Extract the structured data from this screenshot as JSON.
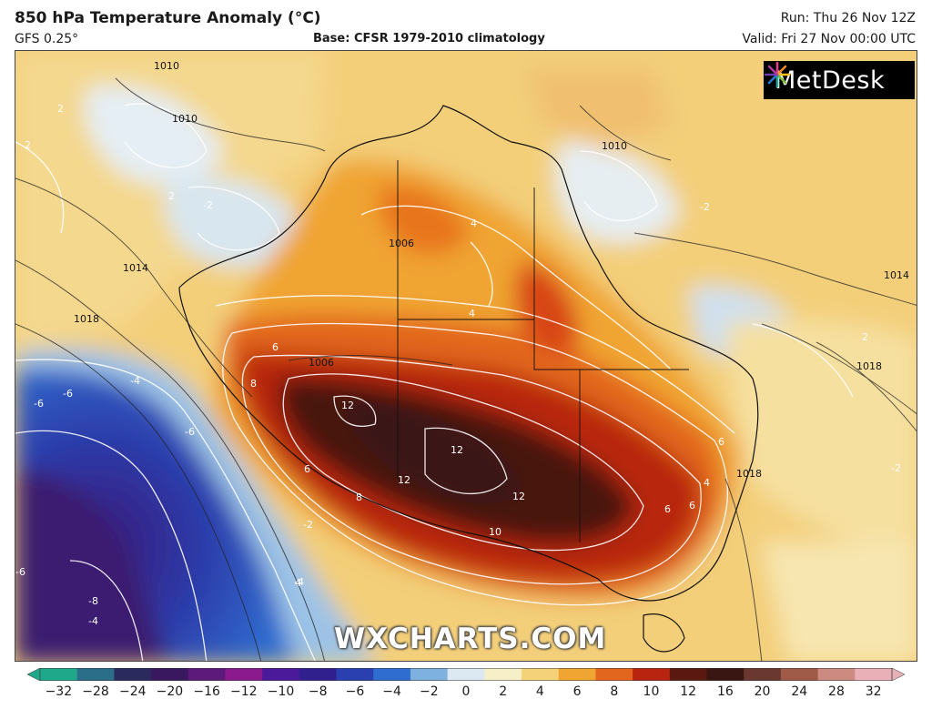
{
  "header": {
    "title": "850 hPa Temperature Anomaly (°C)",
    "model": "GFS 0.25°",
    "base": "Base: CFSR 1979-2010 climatology",
    "run": "Run: Thu 26 Nov 12Z",
    "valid": "Valid: Fri 27 Nov 00:00 UTC"
  },
  "branding": {
    "logo_text": "MetDesk",
    "logo_icon": "starburst-logo-icon",
    "watermark": "WXCHARTS.COM"
  },
  "map": {
    "region": "Australia",
    "anomaly_labels": [
      "12",
      "12",
      "12",
      "12",
      "10",
      "8",
      "8",
      "6",
      "6",
      "6",
      "6",
      "6",
      "4",
      "4",
      "4",
      "4",
      "2",
      "2",
      "2",
      "2",
      "-2",
      "-2",
      "-2",
      "-2",
      "-4",
      "-4",
      "-6",
      "-6",
      "-6",
      "-6",
      "-8",
      "-4"
    ],
    "pressure_labels": [
      "1010",
      "1010",
      "1010",
      "1014",
      "1014",
      "1018",
      "1018",
      "1006",
      "1006",
      "1018"
    ]
  },
  "colorbar": {
    "ticks": [
      "−32",
      "−28",
      "−24",
      "−20",
      "−16",
      "−12",
      "−10",
      "−8",
      "−6",
      "−4",
      "−2",
      "0",
      "2",
      "4",
      "6",
      "8",
      "10",
      "12",
      "16",
      "20",
      "24",
      "28",
      "32"
    ],
    "colors": [
      "#1fa88a",
      "#2a6e8a",
      "#2a2a5e",
      "#3a1860",
      "#5e1a7a",
      "#8a1a8e",
      "#4a1a9a",
      "#30208e",
      "#2a40b0",
      "#2f6ed0",
      "#7eb0e0",
      "#dce8f2",
      "#f6efc8",
      "#f4d27a",
      "#f0a432",
      "#e2661e",
      "#b82410",
      "#5a1810",
      "#3a1612",
      "#6a3830",
      "#a05a48",
      "#cc8a80",
      "#eab0b8"
    ]
  }
}
